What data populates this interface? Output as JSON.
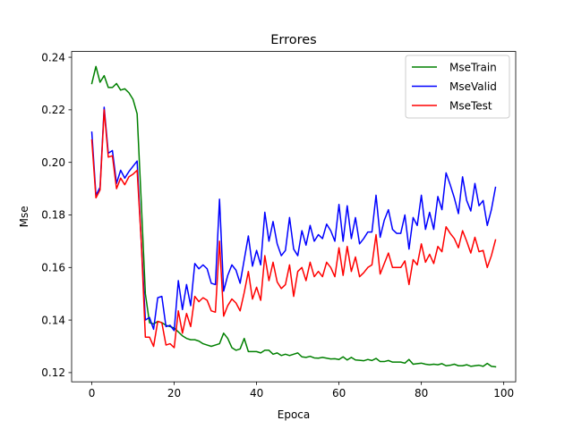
{
  "chart_data": {
    "type": "line",
    "title": "Errores",
    "xlabel": "Epoca",
    "ylabel": "Mse",
    "xlim": [
      -4.9,
      102.9
    ],
    "ylim": [
      0.1165,
      0.2422
    ],
    "xticks": [
      0,
      20,
      40,
      60,
      80,
      100
    ],
    "yticks": [
      0.12,
      0.14,
      0.16,
      0.18,
      0.2,
      0.22,
      0.24
    ],
    "ytick_labels": [
      "0.12",
      "0.14",
      "0.16",
      "0.18",
      "0.20",
      "0.22",
      "0.24"
    ],
    "grid": false,
    "legend_position": "top-right",
    "x": [
      0,
      1,
      2,
      3,
      4,
      5,
      6,
      7,
      8,
      9,
      10,
      11,
      12,
      13,
      14,
      15,
      16,
      17,
      18,
      19,
      20,
      21,
      22,
      23,
      24,
      25,
      26,
      27,
      28,
      29,
      30,
      31,
      32,
      33,
      34,
      35,
      36,
      37,
      38,
      39,
      40,
      41,
      42,
      43,
      44,
      45,
      46,
      47,
      48,
      49,
      50,
      51,
      52,
      53,
      54,
      55,
      56,
      57,
      58,
      59,
      60,
      61,
      62,
      63,
      64,
      65,
      66,
      67,
      68,
      69,
      70,
      71,
      72,
      73,
      74,
      75,
      76,
      77,
      78,
      79,
      80,
      81,
      82,
      83,
      84,
      85,
      86,
      87,
      88,
      89,
      90,
      91,
      92,
      93,
      94,
      95,
      96,
      97,
      98
    ],
    "series": [
      {
        "name": "MseTrain",
        "color": "#008000",
        "values": [
          0.23,
          0.2365,
          0.2305,
          0.233,
          0.2285,
          0.2285,
          0.23,
          0.2275,
          0.228,
          0.2265,
          0.224,
          0.2185,
          0.185,
          0.15,
          0.139,
          0.1385,
          0.1395,
          0.139,
          0.138,
          0.1375,
          0.137,
          0.1355,
          0.134,
          0.133,
          0.1325,
          0.1325,
          0.132,
          0.131,
          0.1305,
          0.13,
          0.1305,
          0.131,
          0.135,
          0.133,
          0.1295,
          0.1285,
          0.129,
          0.133,
          0.128,
          0.128,
          0.128,
          0.1275,
          0.1285,
          0.1285,
          0.127,
          0.1275,
          0.1265,
          0.127,
          0.1265,
          0.127,
          0.1275,
          0.126,
          0.1258,
          0.1262,
          0.1256,
          0.1255,
          0.1258,
          0.1255,
          0.1252,
          0.1253,
          0.125,
          0.126,
          0.1248,
          0.1258,
          0.1248,
          0.1247,
          0.1245,
          0.125,
          0.1246,
          0.1254,
          0.1242,
          0.1242,
          0.1246,
          0.124,
          0.124,
          0.124,
          0.1236,
          0.125,
          0.1232,
          0.1234,
          0.1236,
          0.1232,
          0.123,
          0.1232,
          0.123,
          0.1234,
          0.1226,
          0.1228,
          0.1232,
          0.1226,
          0.1226,
          0.123,
          0.1224,
          0.1226,
          0.1228,
          0.1224,
          0.1235,
          0.1224,
          0.1222
        ]
      },
      {
        "name": "MseValid",
        "color": "#0000ff",
        "values": [
          0.2115,
          0.1875,
          0.1905,
          0.221,
          0.2035,
          0.2045,
          0.192,
          0.197,
          0.194,
          0.1965,
          0.1985,
          0.2005,
          0.17,
          0.14,
          0.141,
          0.1365,
          0.1485,
          0.149,
          0.1375,
          0.138,
          0.136,
          0.155,
          0.144,
          0.1535,
          0.1455,
          0.1615,
          0.1595,
          0.161,
          0.1595,
          0.154,
          0.1535,
          0.186,
          0.151,
          0.157,
          0.161,
          0.159,
          0.154,
          0.163,
          0.172,
          0.1605,
          0.1665,
          0.161,
          0.181,
          0.17,
          0.1775,
          0.169,
          0.1645,
          0.1665,
          0.179,
          0.167,
          0.1645,
          0.174,
          0.1685,
          0.176,
          0.17,
          0.1725,
          0.171,
          0.1765,
          0.174,
          0.17,
          0.184,
          0.17,
          0.1835,
          0.171,
          0.179,
          0.169,
          0.171,
          0.1735,
          0.1735,
          0.1875,
          0.1715,
          0.178,
          0.182,
          0.1745,
          0.173,
          0.173,
          0.18,
          0.167,
          0.179,
          0.176,
          0.1875,
          0.1745,
          0.181,
          0.1745,
          0.187,
          0.182,
          0.196,
          0.1915,
          0.1865,
          0.1805,
          0.1945,
          0.1855,
          0.1815,
          0.192,
          0.1835,
          0.1855,
          0.176,
          0.182,
          0.1905
        ]
      },
      {
        "name": "MseTest",
        "color": "#ff0000",
        "values": [
          0.2085,
          0.1865,
          0.1895,
          0.22,
          0.202,
          0.2025,
          0.19,
          0.194,
          0.1915,
          0.1945,
          0.1955,
          0.197,
          0.17,
          0.1335,
          0.1335,
          0.13,
          0.1395,
          0.139,
          0.1305,
          0.131,
          0.1295,
          0.1435,
          0.135,
          0.1425,
          0.1375,
          0.149,
          0.147,
          0.1485,
          0.1475,
          0.1435,
          0.143,
          0.17,
          0.1415,
          0.1455,
          0.148,
          0.1465,
          0.1435,
          0.1505,
          0.1585,
          0.148,
          0.1525,
          0.1475,
          0.1645,
          0.155,
          0.162,
          0.1545,
          0.152,
          0.1535,
          0.161,
          0.149,
          0.1585,
          0.16,
          0.155,
          0.162,
          0.1565,
          0.1585,
          0.1565,
          0.162,
          0.16,
          0.1565,
          0.1675,
          0.157,
          0.168,
          0.1585,
          0.164,
          0.1565,
          0.158,
          0.16,
          0.161,
          0.1725,
          0.1575,
          0.1615,
          0.1655,
          0.16,
          0.16,
          0.16,
          0.1625,
          0.1535,
          0.163,
          0.161,
          0.169,
          0.162,
          0.165,
          0.1615,
          0.168,
          0.166,
          0.1755,
          0.173,
          0.171,
          0.1675,
          0.174,
          0.17,
          0.1655,
          0.1715,
          0.166,
          0.1665,
          0.16,
          0.1645,
          0.1705
        ]
      }
    ]
  }
}
